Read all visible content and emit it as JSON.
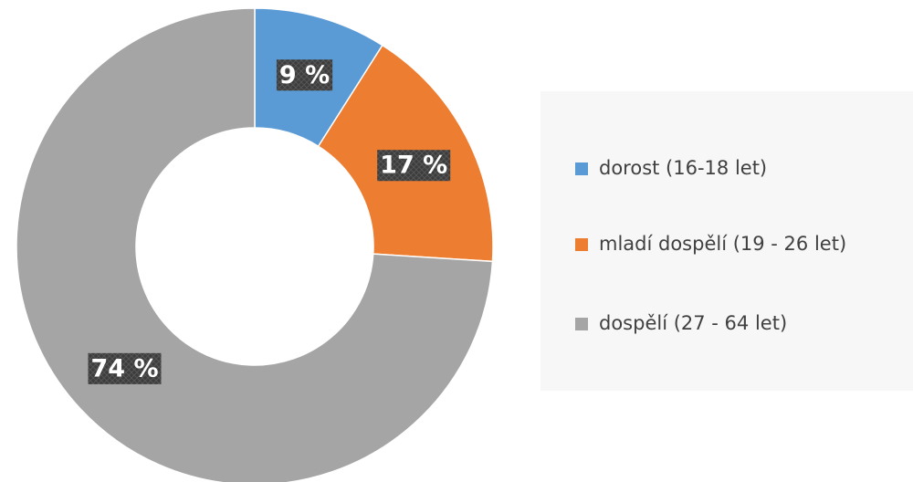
{
  "chart_data": {
    "type": "donut",
    "categories": [
      "dorost (16-18 let)",
      "mladí dospělí (19 - 26 let)",
      "dospělí (27 - 64 let)"
    ],
    "values": [
      9,
      17,
      74
    ],
    "value_labels": [
      "9 %",
      "17 %",
      "74 %"
    ],
    "colors": [
      "#5b9bd5",
      "#ed7d31",
      "#a5a5a5"
    ],
    "legend": "right"
  }
}
